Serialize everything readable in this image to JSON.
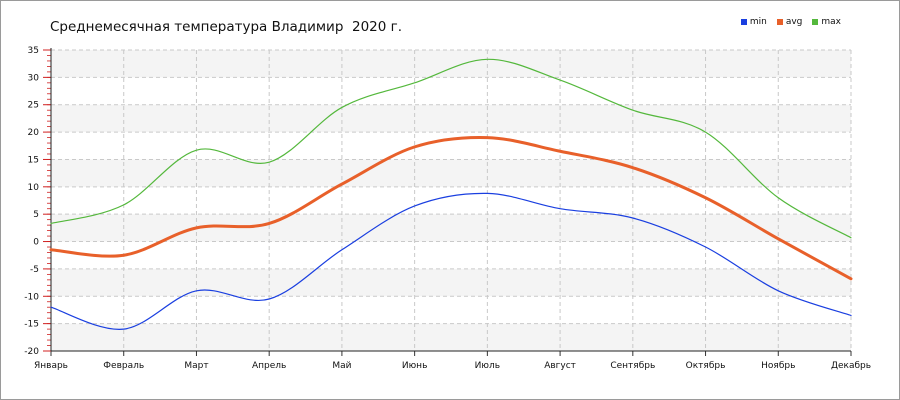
{
  "title": "Среднемесячная температура Владимир  2020 г.",
  "legend": {
    "items": [
      {
        "label": "min",
        "color": "#1a3fe0"
      },
      {
        "label": "avg",
        "color": "#e8602a"
      },
      {
        "label": "max",
        "color": "#54b83c"
      }
    ]
  },
  "chart_data": {
    "type": "line",
    "title": "Среднемесячная температура Владимир  2020 г.",
    "xlabel": "",
    "ylabel": "",
    "categories": [
      "Январь",
      "Февраль",
      "Март",
      "Апрель",
      "Май",
      "Июнь",
      "Июль",
      "Август",
      "Сентябрь",
      "Октябрь",
      "Ноябрь",
      "Декабрь"
    ],
    "ylim": [
      -20,
      35
    ],
    "yticks": [
      -20,
      -15,
      -10,
      -5,
      0,
      5,
      10,
      15,
      20,
      25,
      30,
      35
    ],
    "grid": true,
    "legend_position": "top-right",
    "series": [
      {
        "name": "min",
        "color": "#1a3fe0",
        "values": [
          -12,
          -16,
          -9,
          -10.5,
          -1.5,
          6.5,
          8.8,
          6,
          4.3,
          -1,
          -9,
          -13.5
        ]
      },
      {
        "name": "avg",
        "color": "#e8602a",
        "values": [
          -1.5,
          -2.5,
          2.5,
          3.3,
          10.5,
          17.3,
          19,
          16.5,
          13.5,
          8,
          0.5,
          -6.8
        ]
      },
      {
        "name": "max",
        "color": "#54b83c",
        "values": [
          3.3,
          6.7,
          16.7,
          14.5,
          24.5,
          29,
          33.3,
          29.5,
          24,
          20,
          8,
          0.7
        ]
      }
    ]
  }
}
